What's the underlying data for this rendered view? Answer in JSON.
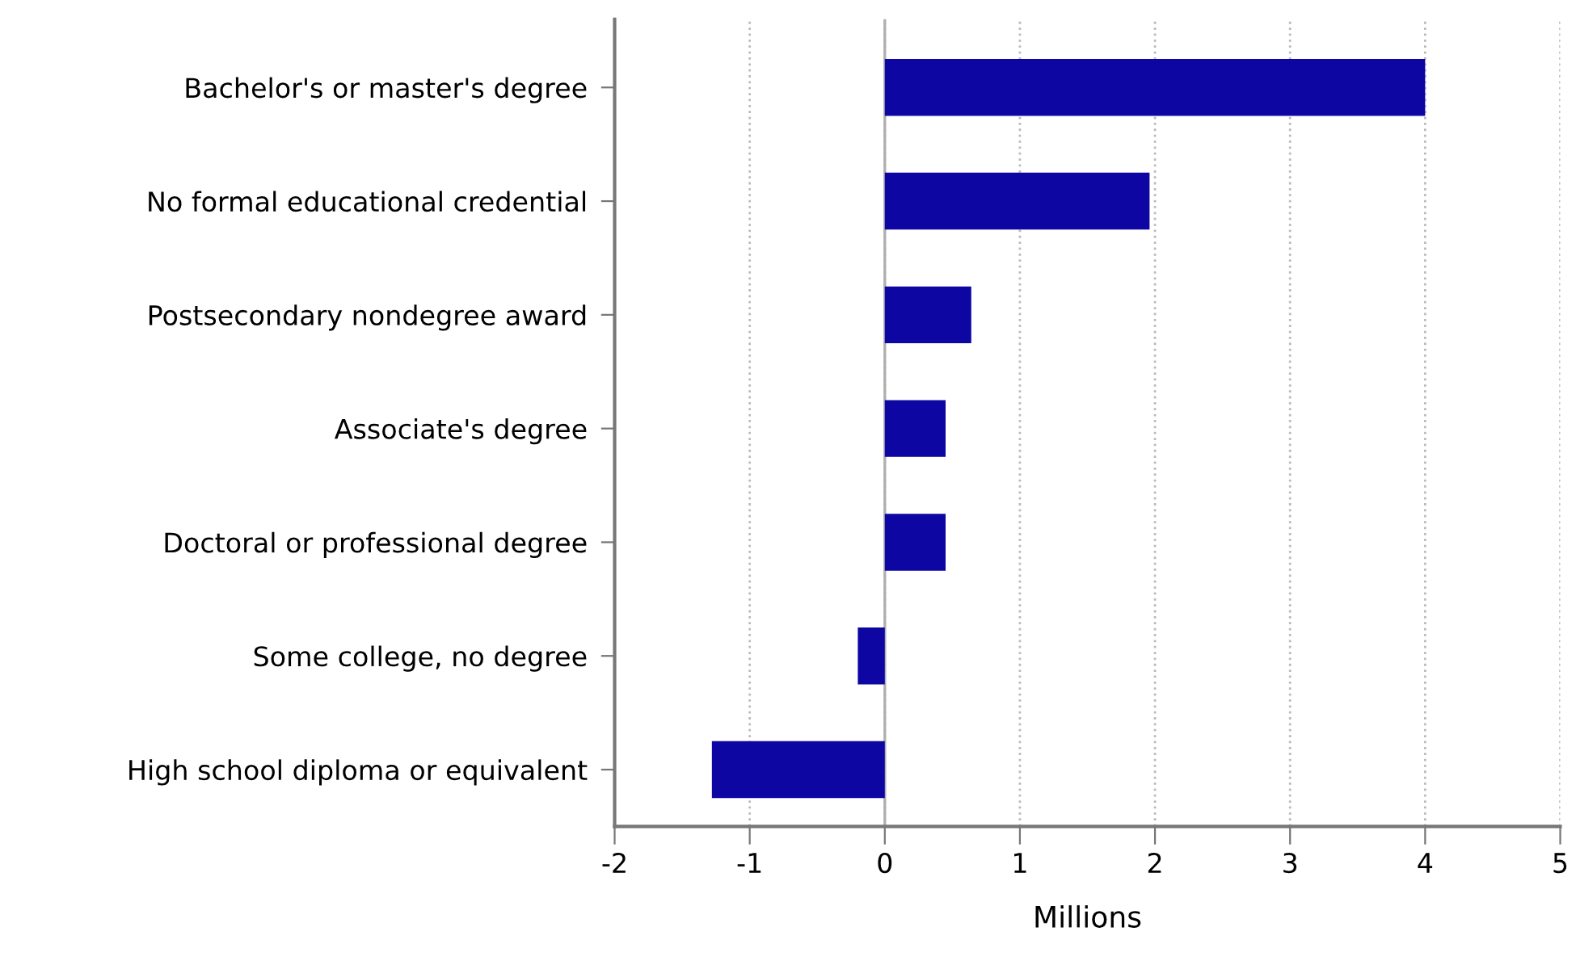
{
  "chart_data": {
    "type": "bar",
    "orientation": "horizontal",
    "xlabel": "Millions",
    "categories": [
      "Bachelor's or master's degree",
      "No formal educational credential",
      "Postsecondary nondegree award",
      "Associate's degree",
      "Doctoral or professional degree",
      "Some college, no degree",
      "High school diploma or equivalent"
    ],
    "values": [
      4.0,
      1.96,
      0.64,
      0.45,
      0.45,
      -0.2,
      -1.28
    ],
    "color": "#0d06a3",
    "xlim": [
      -2,
      5
    ],
    "xticks": [
      -2,
      -1,
      0,
      1,
      2,
      3,
      4,
      5
    ],
    "grid": "x",
    "ref_lines": [
      {
        "axis": "x",
        "value": 0,
        "color": "#b0b0b0",
        "line_style": "solid"
      }
    ]
  }
}
